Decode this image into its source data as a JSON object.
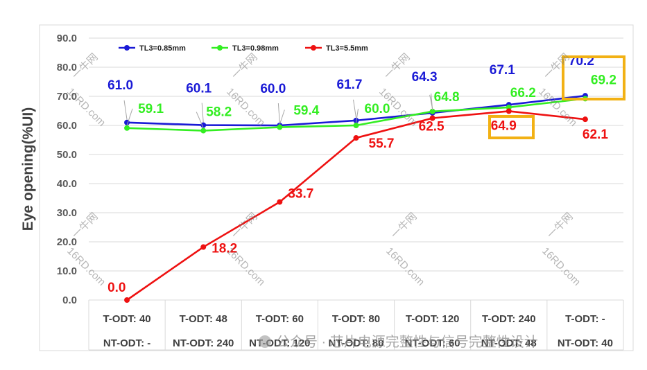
{
  "chart_data": {
    "type": "line",
    "ylabel": "Eye opening(%UI)",
    "xlabel": "",
    "ylim": [
      0,
      90
    ],
    "yticks": [
      "0.0",
      "10.0",
      "20.0",
      "30.0",
      "40.0",
      "50.0",
      "60.0",
      "70.0",
      "80.0",
      "90.0"
    ],
    "grid": "horizontal",
    "legend_position": "top-left",
    "categories": [
      [
        "T-ODT: 40",
        "NT-ODT: -"
      ],
      [
        "T-ODT: 48",
        "NT-ODT: 240"
      ],
      [
        "T-ODT: 60",
        "NT-ODT: 120"
      ],
      [
        "T-ODT: 80",
        "NT-ODT: 80"
      ],
      [
        "T-ODT: 120",
        "NT-ODT: 60"
      ],
      [
        "T-ODT: 240",
        "NT-ODT: 48"
      ],
      [
        "T-ODT: -",
        "NT-ODT: 40"
      ]
    ],
    "series": [
      {
        "name": "TL3=0.85mm",
        "color": "#1a1ad6",
        "values": [
          61.0,
          60.1,
          60.0,
          61.7,
          64.3,
          67.1,
          70.2
        ],
        "labels": [
          "61.0",
          "60.1",
          "60.0",
          "61.7",
          "64.3",
          "67.1",
          "70.2"
        ]
      },
      {
        "name": "TL3=0.98mm",
        "color": "#33ee22",
        "values": [
          59.1,
          58.2,
          59.4,
          60.0,
          64.8,
          66.2,
          69.2
        ],
        "labels": [
          "59.1",
          "58.2",
          "59.4",
          "60.0",
          "64.8",
          "66.2",
          "69.2"
        ]
      },
      {
        "name": "TL3=5.5mm",
        "color": "#ee1111",
        "values": [
          0.0,
          18.2,
          33.7,
          55.7,
          62.5,
          64.9,
          62.1
        ],
        "labels": [
          "0.0",
          "18.2",
          "33.7",
          "55.7",
          "62.5",
          "64.9",
          "62.1"
        ]
      }
    ],
    "highlight_color": "#f2b114"
  },
  "watermarks": {
    "logo_text": "一牛网",
    "site_text": "16RD.com",
    "footer_text": "公众号 · 芯片电源完整性与信号完整性设计"
  }
}
